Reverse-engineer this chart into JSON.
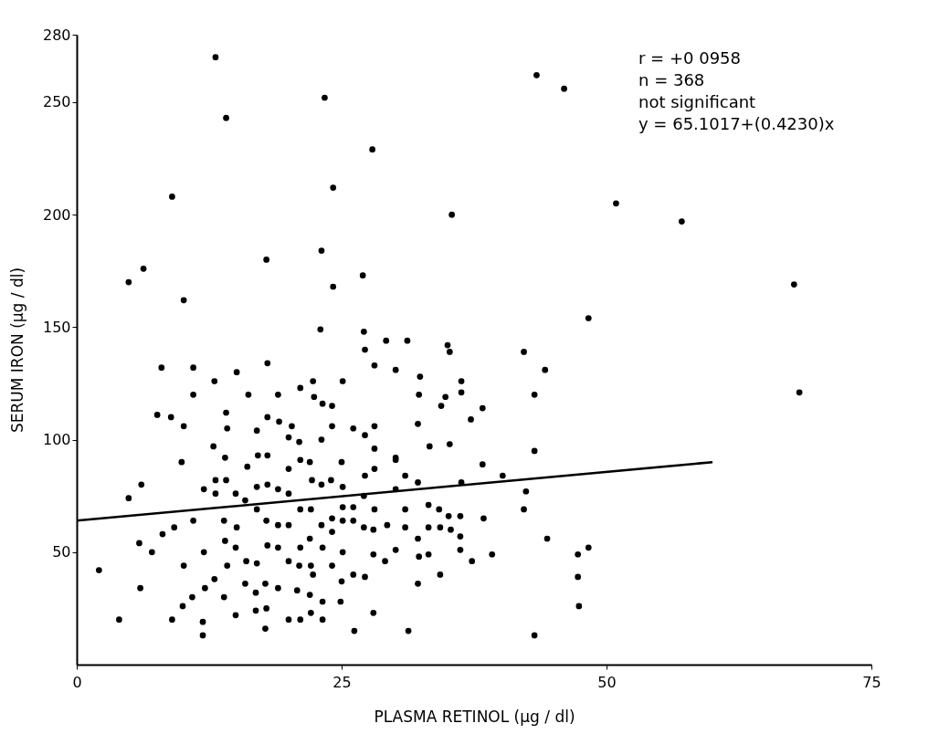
{
  "chart_data": {
    "type": "scatter",
    "xlabel": "PLASMA RETINOL (µg / dl)",
    "ylabel": "SERUM IRON (µg / dl)",
    "xlim": [
      0,
      75
    ],
    "xticks": [
      0,
      25,
      50,
      75
    ],
    "ylim": [
      0,
      280
    ],
    "yticks": [
      50,
      100,
      150,
      200,
      250,
      280
    ],
    "annotations": [
      "r = +0 0958",
      "n = 368",
      "not significant",
      "y = 65.1017+(0.4230)x"
    ],
    "series": [
      {
        "color": "#000000",
        "marker": "circle",
        "x": [
          2.1,
          4.0,
          4.9,
          6.1,
          5.9,
          6.0,
          7.1,
          8.0,
          7.6,
          8.9,
          10.1,
          9.9,
          8.1,
          9.0,
          9.2,
          10.1,
          10.0,
          11.0,
          11.0,
          11.0,
          10.9,
          12.0,
          12.0,
          12.1,
          11.9,
          11.9,
          13.0,
          12.9,
          13.1,
          13.1,
          13.0,
          14.1,
          14.2,
          14.0,
          14.1,
          13.9,
          14.0,
          14.2,
          13.9,
          15.1,
          15.1,
          15.0,
          15.0,
          15.0,
          16.2,
          16.1,
          15.9,
          16.0,
          15.9,
          17.0,
          17.1,
          17.0,
          17.0,
          17.0,
          16.9,
          16.9,
          18.0,
          18.0,
          18.0,
          18.0,
          17.9,
          18.0,
          17.8,
          17.8,
          17.9,
          19.0,
          19.1,
          19.0,
          19.0,
          19.0,
          19.0,
          20.0,
          20.0,
          20.0,
          20.0,
          20.0,
          20.0,
          20.3,
          21.1,
          21.0,
          21.1,
          21.1,
          21.1,
          21.0,
          20.8,
          21.1,
          22.3,
          22.4,
          22.0,
          22.2,
          22.1,
          22.0,
          22.1,
          22.0,
          22.1,
          22.3,
          23.2,
          23.1,
          23.1,
          23.1,
          23.2,
          23.2,
          23.2,
          24.1,
          24.1,
          24.0,
          24.1,
          24.1,
          24.1,
          25.1,
          25.0,
          25.1,
          25.1,
          25.1,
          25.1,
          25.0,
          24.9,
          26.2,
          26.1,
          26.1,
          26.1,
          26.1,
          27.2,
          27.2,
          27.2,
          27.1,
          27.1,
          27.2,
          28.1,
          28.1,
          28.1,
          28.1,
          28.1,
          28.0,
          28.0,
          28.0,
          29.1,
          29.3,
          30.1,
          30.1,
          30.1,
          32.4,
          32.3,
          36.3,
          36.3,
          38.3,
          37.2,
          32.2,
          34.4,
          34.8,
          35.2,
          42.2,
          44.2,
          43.2,
          43.2,
          33.3,
          35.2,
          38.3,
          40.2,
          42.4,
          42.2,
          44.4,
          48.3,
          47.3,
          47.3,
          47.4,
          43.2,
          31.3,
          39.2,
          37.3,
          36.2,
          36.2,
          35.3,
          34.3,
          33.2,
          32.2,
          32.3,
          33.2,
          34.3,
          32.2,
          31.0,
          31.0,
          33.2,
          36.2,
          38.4,
          34.2,
          35.1,
          30.1,
          31.0,
          30.1,
          32.2,
          36.3,
          68.2,
          43.4,
          46.0,
          27.9,
          35.4,
          50.9,
          57.1,
          27.0,
          67.7,
          48.3,
          27.1,
          29.2,
          31.2,
          35.0,
          13.1,
          14.1,
          23.4,
          24.2,
          9.0,
          17.9,
          23.1,
          24.2,
          6.3,
          4.9,
          10.1,
          23.0
        ],
        "values": [
          42,
          20,
          74,
          80,
          54,
          34,
          50,
          132,
          111,
          110,
          106,
          90,
          58,
          20,
          61,
          44,
          26,
          132,
          120,
          64,
          30,
          78,
          50,
          34,
          19,
          13,
          126,
          97,
          82,
          76,
          38,
          112,
          105,
          92,
          82,
          64,
          55,
          44,
          30,
          130,
          61,
          52,
          22,
          76,
          120,
          88,
          73,
          46,
          36,
          104,
          93,
          79,
          69,
          45,
          24,
          32,
          134,
          110,
          93,
          80,
          64,
          53,
          36,
          16,
          25,
          120,
          108,
          78,
          62,
          52,
          34,
          101,
          87,
          76,
          62,
          46,
          20,
          106,
          123,
          99,
          91,
          69,
          52,
          44,
          33,
          20,
          126,
          119,
          90,
          82,
          69,
          56,
          44,
          31,
          23,
          40,
          116,
          100,
          80,
          62,
          52,
          28,
          20,
          115,
          106,
          82,
          65,
          59,
          44,
          126,
          90,
          79,
          70,
          64,
          50,
          37,
          28,
          15,
          105,
          70,
          64,
          40,
          140,
          102,
          84,
          75,
          61,
          39,
          133,
          106,
          96,
          87,
          69,
          60,
          49,
          23,
          46,
          62,
          131,
          92,
          51,
          128,
          120,
          126,
          121,
          114,
          109,
          107,
          115,
          119,
          139,
          139,
          131,
          120,
          95,
          97,
          98,
          89,
          84,
          77,
          69,
          56,
          52,
          49,
          39,
          26,
          13,
          15,
          49,
          46,
          51,
          57,
          60,
          61,
          61,
          56,
          48,
          49,
          40,
          36,
          61,
          69,
          71,
          66,
          65,
          69,
          66,
          78,
          84,
          91,
          81,
          81,
          121,
          262,
          256,
          229,
          200,
          205,
          197,
          173,
          169,
          154,
          148,
          144,
          144,
          142,
          270,
          243,
          252,
          212,
          208,
          180,
          184,
          168,
          176,
          170,
          162,
          149
        ]
      },
      {
        "type": "line",
        "color": "#000000",
        "x": [
          0,
          60
        ],
        "values": [
          64,
          90
        ]
      }
    ]
  }
}
